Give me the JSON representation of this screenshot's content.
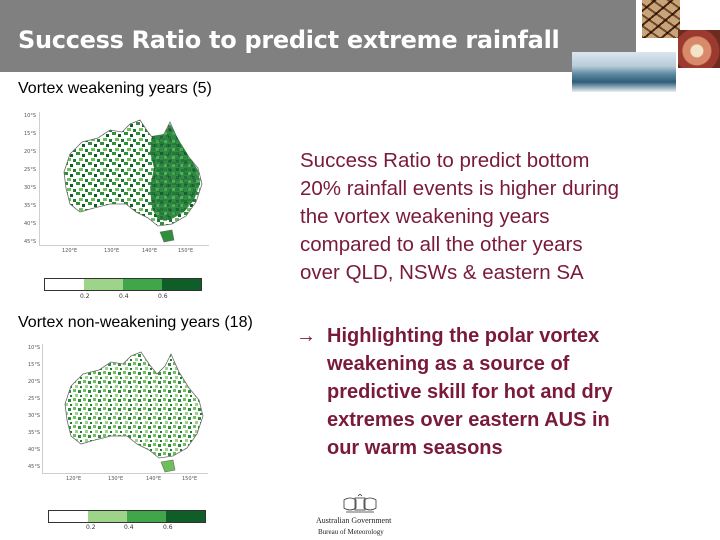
{
  "header": {
    "title": "Success Ratio to predict extreme rainfall"
  },
  "top_panel": {
    "caption": "Vortex weakening years (5)",
    "lat_labels": [
      "10°S",
      "15°S",
      "20°S",
      "25°S",
      "30°S",
      "35°S",
      "40°S",
      "45°S"
    ],
    "lon_labels": [
      "120°E",
      "130°E",
      "140°E",
      "150°E"
    ],
    "colorbar_labels": [
      "0.2",
      "0.4",
      "0.6"
    ]
  },
  "bottom_panel": {
    "caption": "Vortex non-weakening years (18)",
    "lat_labels": [
      "10°S",
      "15°S",
      "20°S",
      "25°S",
      "30°S",
      "35°S",
      "40°S",
      "45°S"
    ],
    "lon_labels": [
      "120°E",
      "130°E",
      "140°E",
      "150°E"
    ],
    "colorbar_labels": [
      "0.2",
      "0.4",
      "0.6"
    ]
  },
  "colorbar_colors": [
    "#ffffff",
    "#9ed38a",
    "#3fa64a",
    "#0f5e28"
  ],
  "body_text": {
    "lines": [
      "Success Ratio to predict bottom",
      "20% rainfall events is higher during",
      "the vortex weakening years",
      "compared to all the other years",
      "over QLD, NSWs & eastern SA"
    ]
  },
  "highlight": {
    "arrow": "→",
    "lines": [
      "Highlighting the polar vortex",
      "weakening as a source of",
      "predictive skill for hot and dry",
      "extremes over eastern AUS in",
      "our warm seasons"
    ]
  },
  "logo": {
    "line1": "Australian Government",
    "line2": "Bureau of Meteorology"
  },
  "colors": {
    "header_bg": "#808080",
    "text_accent": "#7a1a3a"
  }
}
